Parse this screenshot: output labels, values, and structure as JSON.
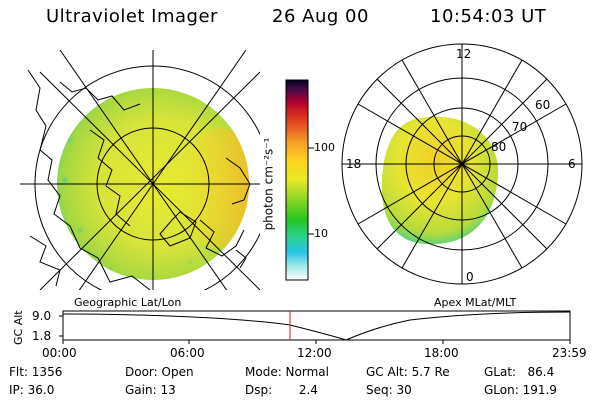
{
  "header": {
    "instrument": "Ultraviolet Imager",
    "date": "26 Aug 00",
    "time": "10:54:03 UT"
  },
  "colorbar": {
    "unit_label": "photon cm⁻²s⁻¹",
    "ticks": [
      "100",
      "10"
    ],
    "stops": [
      "#ffffff",
      "#9fe8e8",
      "#27c4e8",
      "#2bd18a",
      "#23c523",
      "#8ad420",
      "#e6ea28",
      "#ffd21e",
      "#f5a524",
      "#ea5e24",
      "#d42a1f",
      "#b00030",
      "#4a0a48",
      "#000020"
    ]
  },
  "left_panel": {
    "label": "Geographic Lat/Lon"
  },
  "right_panel": {
    "label": "Apex MLat/MLT",
    "mlt_labels": [
      "12",
      "18",
      "6",
      "0"
    ],
    "mlat_labels": [
      "60",
      "70",
      "80"
    ]
  },
  "altitude_plot": {
    "ylabel": "GC Alt",
    "ytick_labels": [
      "9.0",
      "1.8"
    ],
    "time_labels": [
      "00:00",
      "06:00",
      "12:00",
      "18:00",
      "23:59"
    ],
    "marker_color": "#d02020"
  },
  "info": {
    "flt": "Flt: 1356",
    "ip": "IP: 36.0",
    "door": "Door: Open",
    "gain": "Gain: 13",
    "mode": "Mode: Normal",
    "dsp": "Dsp:       2.4",
    "gc_alt": "GC Alt: 5.7 Re",
    "seq": "Seq: 30",
    "glat": "GLat:   86.4",
    "glon": "GLon: 191.9"
  }
}
